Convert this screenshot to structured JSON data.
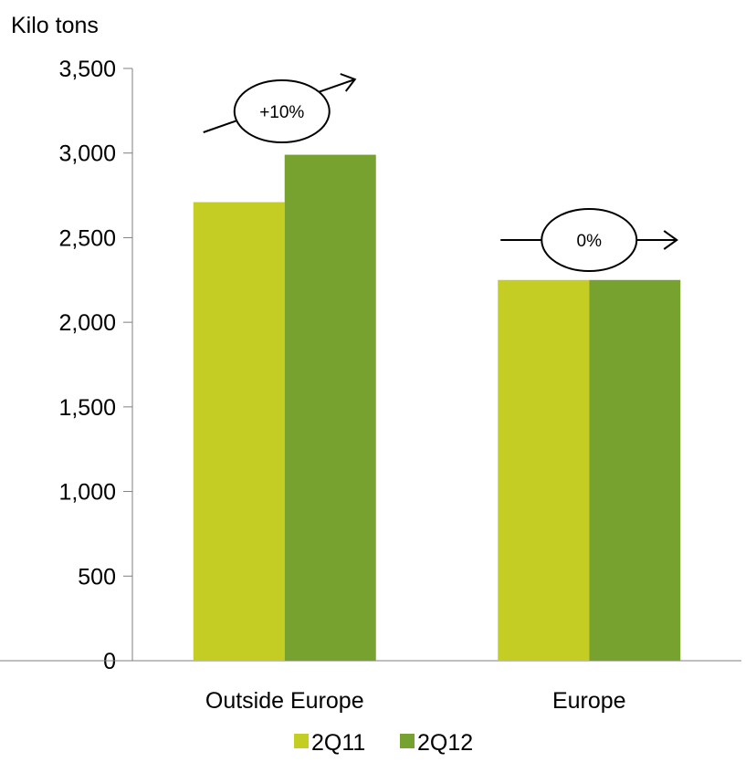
{
  "chart_data": {
    "type": "bar",
    "unit_label": "Kilo tons",
    "categories": [
      "Outside Europe",
      "Europe"
    ],
    "series": [
      {
        "name": "2Q11",
        "values": [
          2710,
          2250
        ],
        "color": "#c3cd24"
      },
      {
        "name": "2Q12",
        "values": [
          2990,
          2250
        ],
        "color": "#78a22f"
      }
    ],
    "ylim": [
      0,
      3500
    ],
    "yticks": [
      0,
      500,
      1000,
      1500,
      2000,
      2500,
      3000,
      3500
    ],
    "ytick_labels": [
      "0",
      "500",
      "1,000",
      "1,500",
      "2,000",
      "2,500",
      "3,000",
      "3,500"
    ],
    "grid": false,
    "legend_position": "bottom",
    "annotations": [
      {
        "category": "Outside Europe",
        "text": "+10%",
        "direction": "up"
      },
      {
        "category": "Europe",
        "text": "0%",
        "direction": "flat"
      }
    ]
  }
}
